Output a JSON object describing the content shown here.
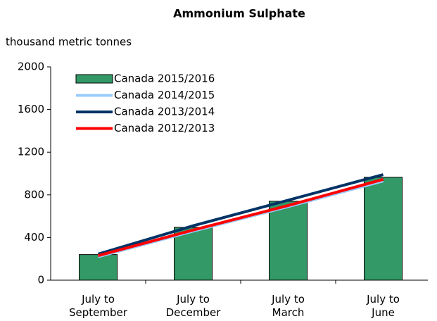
{
  "chart_data": {
    "type": "bar",
    "title": "Ammonium Sulphate",
    "y_axis_label": "thousand metric tonnes",
    "categories": [
      "July to\nSeptember",
      "July to\nDecember",
      "July to\nMarch",
      "July to\nJune"
    ],
    "ylim": [
      0,
      2000
    ],
    "yticks": [
      0,
      400,
      800,
      1200,
      1600,
      2000
    ],
    "legend": "upper left",
    "series": [
      {
        "name": "Canada 2015/2016",
        "type": "bar",
        "color": "#339966",
        "values": [
          240,
          495,
          740,
          965
        ]
      },
      {
        "name": "Canada 2014/2015",
        "type": "line",
        "color": "#99ccff",
        "values": [
          220,
          460,
          690,
          930
        ]
      },
      {
        "name": "Canada 2013/2014",
        "type": "line",
        "color": "#003366",
        "values": [
          245,
          510,
          750,
          990
        ]
      },
      {
        "name": "Canada 2012/2013",
        "type": "line",
        "color": "#ff0000",
        "values": [
          230,
          470,
          700,
          945
        ]
      }
    ]
  }
}
